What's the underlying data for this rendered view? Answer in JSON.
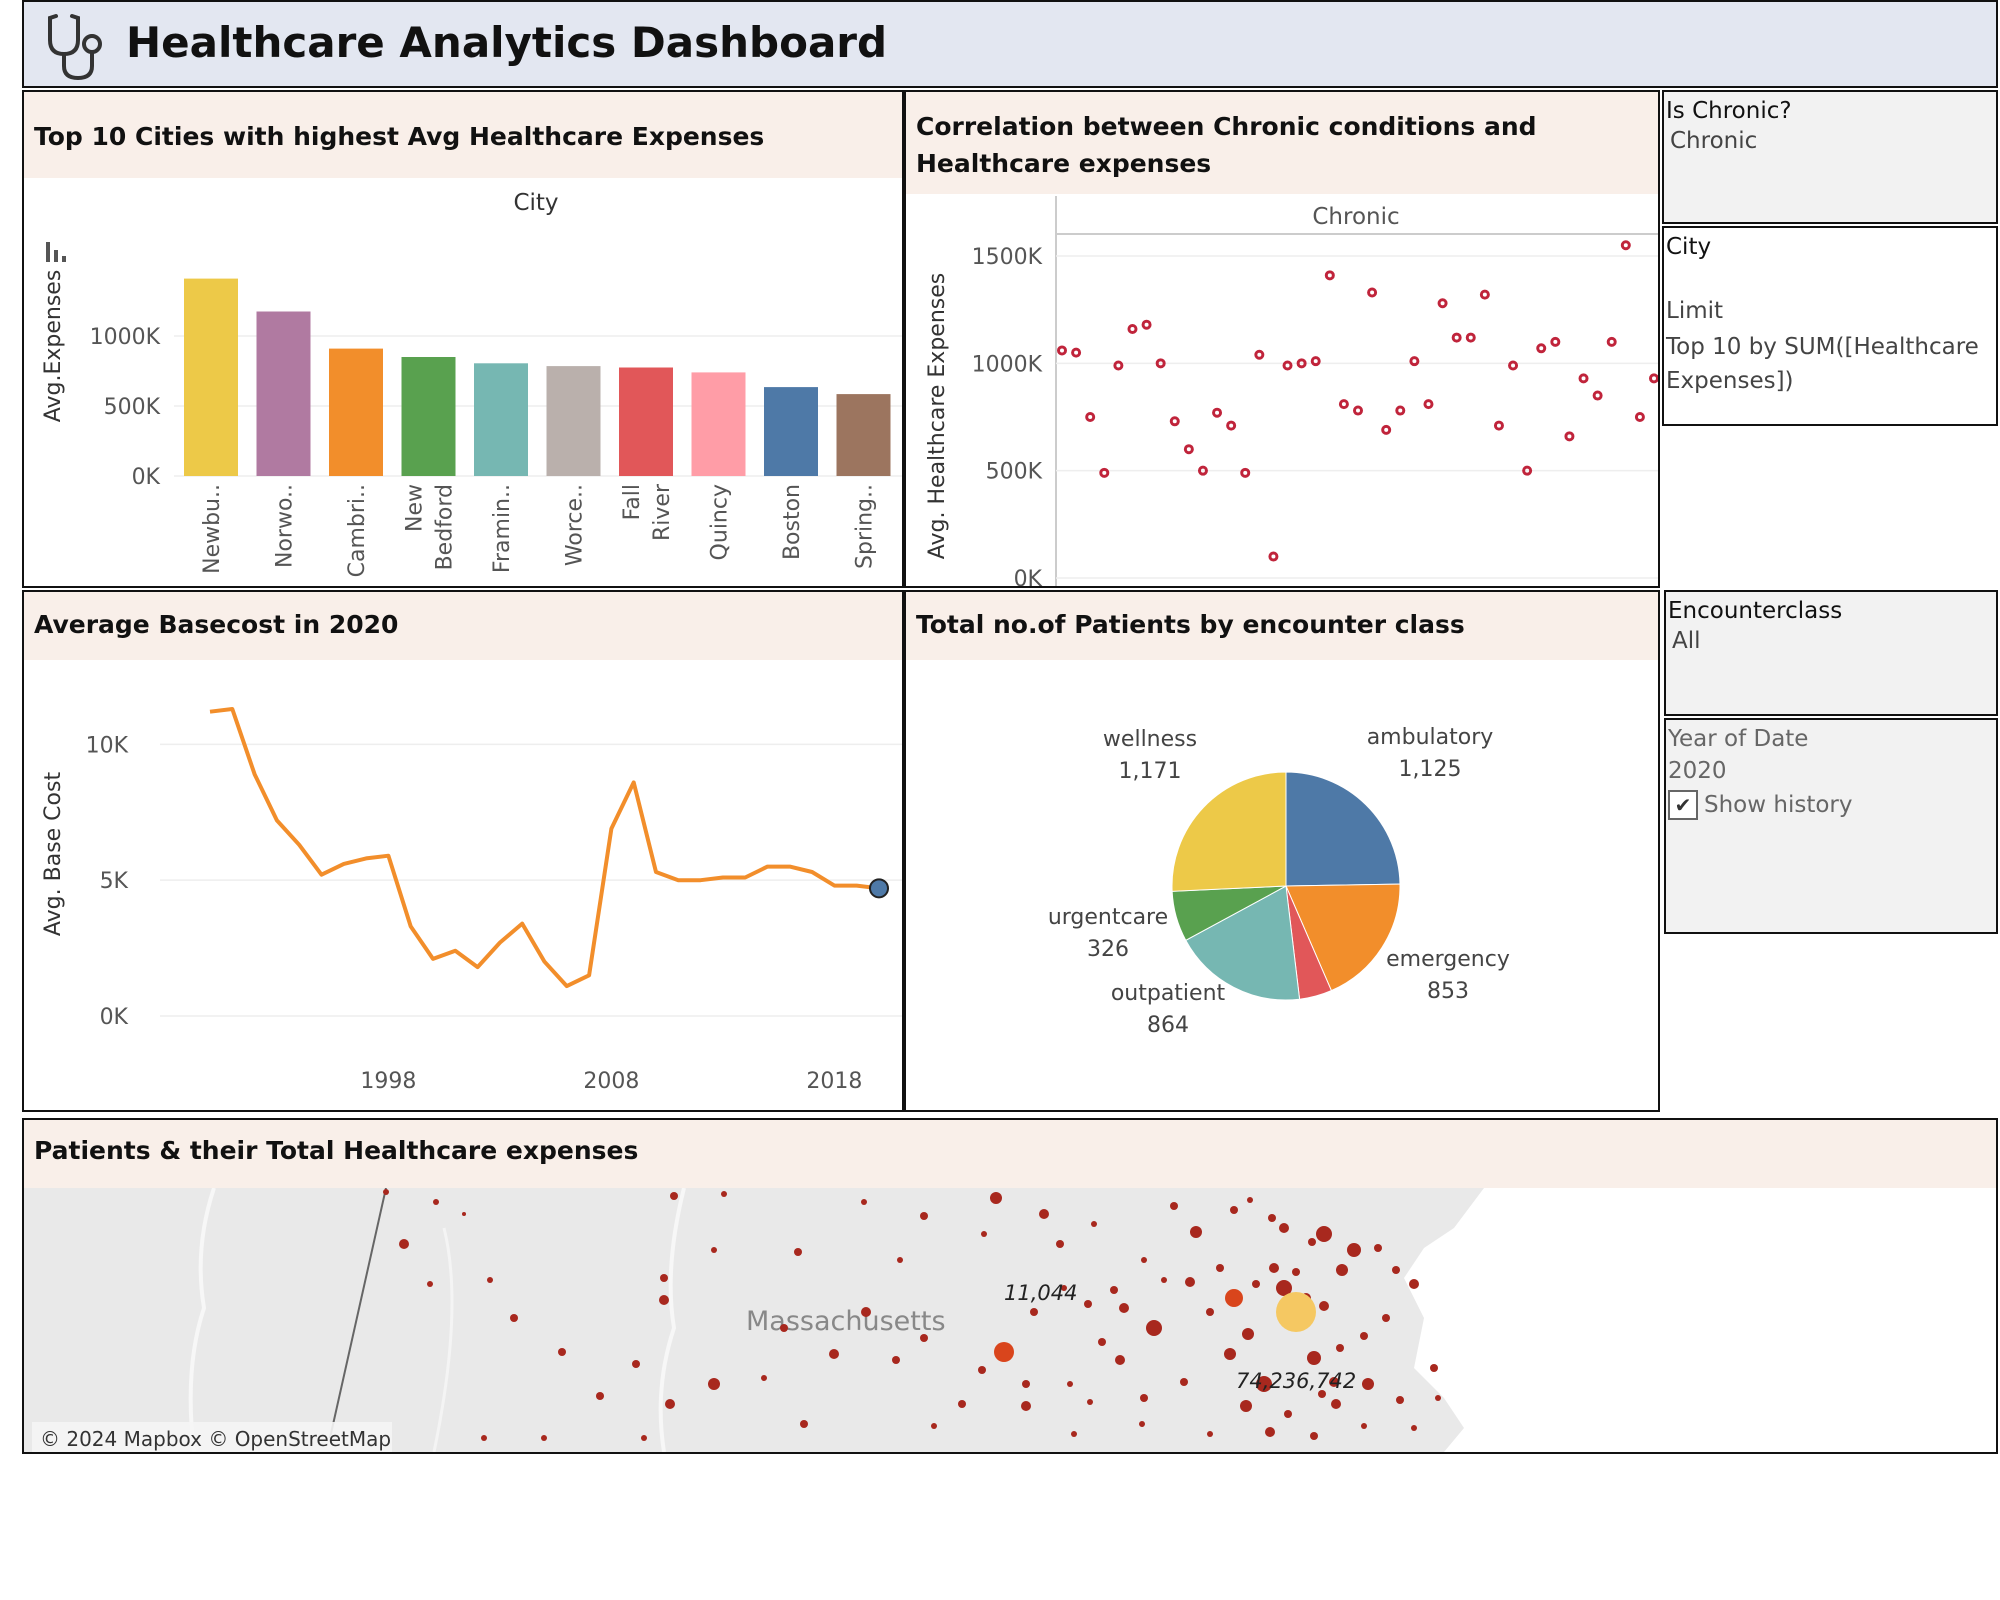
{
  "title": "Healthcare Analytics Dashboard",
  "icons": {
    "logo": "stethoscope-icon",
    "filter": "filter-icon"
  },
  "colors": {
    "title_bg": "#e3e7f1",
    "panel_header_bg": "#f9efe9",
    "line": "#f28e2b",
    "scatter": "#c0243b"
  },
  "bar_panel": {
    "title": "Top 10 Cities with highest Avg Healthcare Expenses",
    "column_header": "City",
    "chart_data": {
      "type": "bar",
      "categories": [
        "Newbu..",
        "Norwo..",
        "Cambri..",
        "New Bedford",
        "Framin..",
        "Worce..",
        "Fall River",
        "Quincy",
        "Boston",
        "Spring.."
      ],
      "values": [
        1410000,
        1175000,
        910000,
        850000,
        805000,
        785000,
        775000,
        740000,
        635000,
        585000
      ],
      "colors": [
        "#edc948",
        "#b07aa1",
        "#f28e2b",
        "#59a14f",
        "#76b7b2",
        "#bab0ac",
        "#e15759",
        "#ff9da7",
        "#4e79a7",
        "#9c755f"
      ],
      "ylabel": "Avg.Expenses",
      "yticks": [
        "0K",
        "500K",
        "1000K"
      ],
      "ylim": [
        0,
        1550000
      ]
    }
  },
  "scatter_panel": {
    "title": "Correlation between Chronic conditions and Healthcare expenses",
    "column_header": "Chronic",
    "chart_data": {
      "type": "scatter",
      "ylabel": "Avg. Healthcare Expenses",
      "yticks": [
        "0K",
        "500K",
        "1000K",
        "1500K"
      ],
      "ylim": [
        0,
        1650000
      ],
      "y": [
        1060000,
        1050000,
        750000,
        490000,
        990000,
        1160000,
        1180000,
        1000000,
        730000,
        600000,
        500000,
        770000,
        710000,
        490000,
        1040000,
        100000,
        990000,
        1000000,
        1010000,
        1410000,
        810000,
        780000,
        1330000,
        690000,
        780000,
        1010000,
        810000,
        1280000,
        1120000,
        1120000,
        1320000,
        710000,
        990000,
        500000,
        1070000,
        1100000,
        660000,
        930000,
        850000,
        1100000,
        1550000,
        750000,
        930000
      ]
    }
  },
  "line_panel": {
    "title": "Average Basecost in 2020",
    "chart_data": {
      "type": "line",
      "x": [
        1990,
        1991,
        1992,
        1993,
        1994,
        1995,
        1996,
        1997,
        1998,
        1999,
        2000,
        2001,
        2002,
        2003,
        2004,
        2005,
        2006,
        2007,
        2008,
        2009,
        2010,
        2011,
        2012,
        2013,
        2014,
        2015,
        2016,
        2017,
        2018,
        2019,
        2020
      ],
      "y": [
        11200,
        11300,
        8900,
        7200,
        6300,
        5200,
        5600,
        5800,
        5900,
        3300,
        2100,
        2400,
        1800,
        2700,
        3400,
        2000,
        1100,
        1500,
        6900,
        8600,
        5300,
        5000,
        5000,
        5100,
        5100,
        5500,
        5500,
        5300,
        4800,
        4800,
        4700
      ],
      "ylabel": "Avg. Base Cost",
      "yticks": [
        "0K",
        "5K",
        "10K"
      ],
      "xticks": [
        "1998",
        "2008",
        "2018"
      ],
      "ylim": [
        0,
        12000
      ]
    }
  },
  "pie_panel": {
    "title": "Total no.of Patients by encounter class",
    "chart_data": {
      "type": "pie",
      "slices": [
        {
          "name": "ambulatory",
          "label": "1,125",
          "value": 1125,
          "color": "#4e79a7"
        },
        {
          "name": "emergency",
          "label": "853",
          "value": 853,
          "color": "#f28e2b"
        },
        {
          "name": "",
          "label": "",
          "value": 210,
          "color": "#e15759"
        },
        {
          "name": "outpatient",
          "label": "864",
          "value": 864,
          "color": "#76b7b2"
        },
        {
          "name": "urgentcare",
          "label": "326",
          "value": 326,
          "color": "#59a14f"
        },
        {
          "name": "wellness",
          "label": "1,171",
          "value": 1171,
          "color": "#edc948"
        }
      ]
    }
  },
  "filters": {
    "is_chronic": {
      "title": "Is Chronic?",
      "value": "Chronic"
    },
    "city": {
      "title": "City",
      "limit_label": "Limit",
      "limit_value": "Top 10 by SUM([Healthcare Expenses])"
    },
    "encounterclass": {
      "title": "Encounterclass",
      "value": "All"
    },
    "year": {
      "title": "Year of Date",
      "value": "2020",
      "history_label": "Show history",
      "history_checked": true
    }
  },
  "map_panel": {
    "title": "Patients & their Total Healthcare expenses",
    "region_label": "Massachusetts",
    "label_small": "11,044",
    "label_large": "74,236,742",
    "attribution": "© 2024 Mapbox © OpenStreetMap"
  }
}
